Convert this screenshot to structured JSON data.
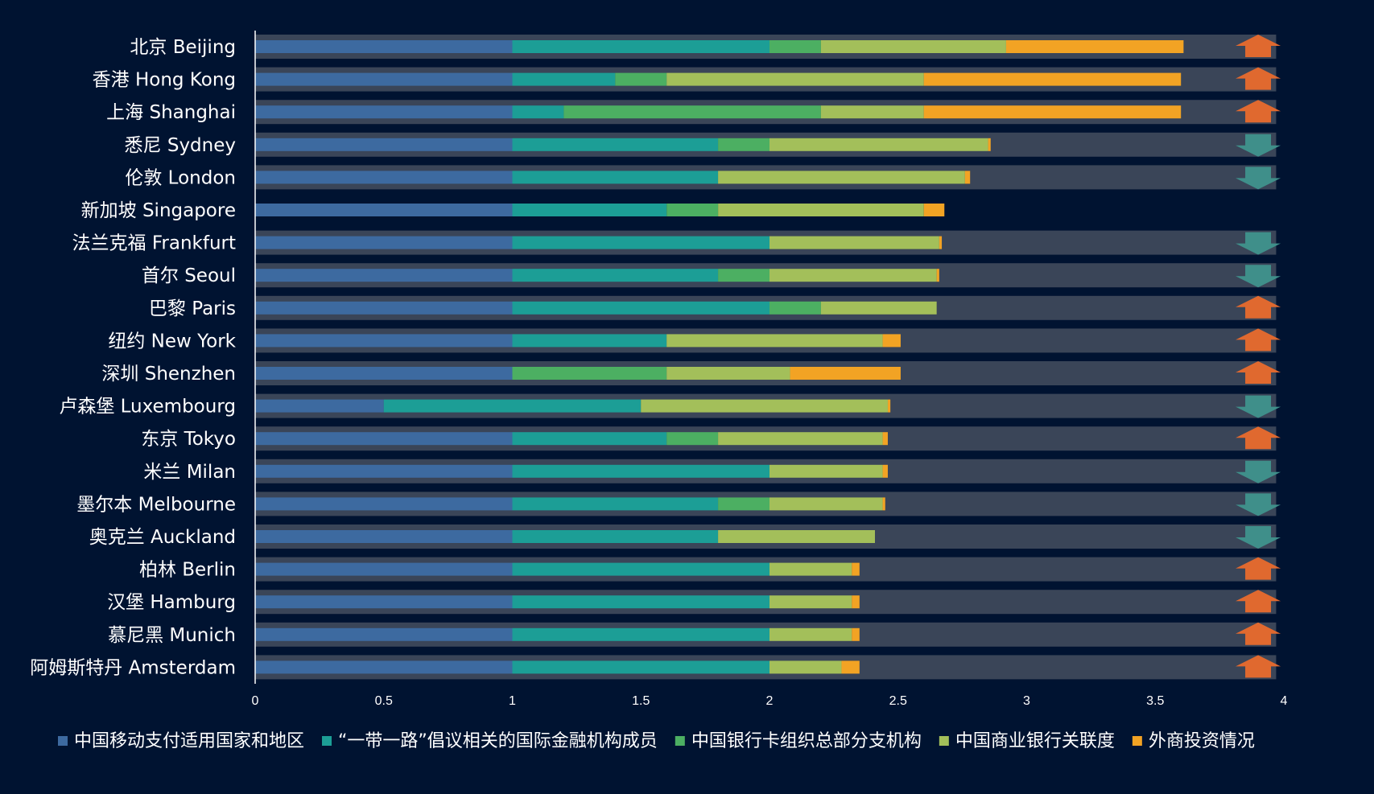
{
  "chart_data": {
    "type": "bar",
    "orientation": "horizontal",
    "stacked": true,
    "categories": [
      "北京 Beijing",
      "香港 Hong Kong",
      "上海 Shanghai",
      "悉尼 Sydney",
      "伦敦 London",
      "新加坡 Singapore",
      "法兰克福 Frankfurt",
      "首尔 Seoul",
      "巴黎 Paris",
      "纽约 New York",
      "深圳 Shenzhen",
      "卢森堡 Luxembourg",
      "东京 Tokyo",
      "米兰 Milan",
      "墨尔本 Melbourne",
      "奥克兰 Auckland",
      "柏林 Berlin",
      "汉堡 Hamburg",
      "慕尼黑 Munich",
      "阿姆斯特丹 Amsterdam"
    ],
    "series": [
      {
        "name": "中国移动支付适用国家和地区",
        "color": "#3d6aa0",
        "values": [
          1,
          1,
          1,
          1,
          1,
          1,
          1,
          1,
          1,
          1,
          1,
          0.5,
          1,
          1,
          1,
          1,
          1,
          1,
          1,
          1
        ]
      },
      {
        "name": "“一带一路”倡议相关的国际金融机构成员",
        "color": "#1c9e96",
        "values": [
          1,
          0.4,
          0.2,
          0.8,
          0.8,
          0.6,
          1,
          0.8,
          1,
          0.6,
          0,
          1,
          0.6,
          1,
          0.8,
          0.8,
          1,
          1,
          1,
          1
        ]
      },
      {
        "name": "中国银行卡组织总部分支机构",
        "color": "#4caf62",
        "values": [
          0.2,
          0.2,
          1,
          0.2,
          0,
          0.2,
          0,
          0.2,
          0.2,
          0,
          0.6,
          0,
          0.2,
          0,
          0.2,
          0,
          0,
          0,
          0,
          0
        ]
      },
      {
        "name": "中国商业银行关联度",
        "color": "#a3bf5a",
        "values": [
          0.72,
          1,
          0.4,
          0.85,
          0.96,
          0.8,
          0.66,
          0.65,
          0.45,
          0.84,
          0.48,
          0.96,
          0.64,
          0.44,
          0.44,
          0.61,
          0.32,
          0.32,
          0.32,
          0.28
        ]
      },
      {
        "name": "外商投资情况",
        "color": "#f2a324",
        "values": [
          0.69,
          1,
          1,
          0.01,
          0.02,
          0.08,
          0.01,
          0.01,
          0,
          0.07,
          0.43,
          0.01,
          0.02,
          0.02,
          0.01,
          0,
          0.03,
          0.03,
          0.03,
          0.07
        ]
      }
    ],
    "trend": [
      "up",
      "up",
      "up",
      "down",
      "down",
      "none",
      "down",
      "down",
      "up",
      "up",
      "up",
      "down",
      "up",
      "down",
      "down",
      "down",
      "up",
      "up",
      "up",
      "up"
    ],
    "xlim": [
      0,
      4
    ],
    "xticks": [
      "0",
      "0.5",
      "1",
      "1.5",
      "2",
      "2.5",
      "3",
      "3.5",
      "4"
    ],
    "legend_position": "bottom",
    "colors": {
      "background": "#001331",
      "row_band": "#3a4558",
      "arrow_up": "#e0692f",
      "arrow_down": "#3f8f8a"
    }
  }
}
